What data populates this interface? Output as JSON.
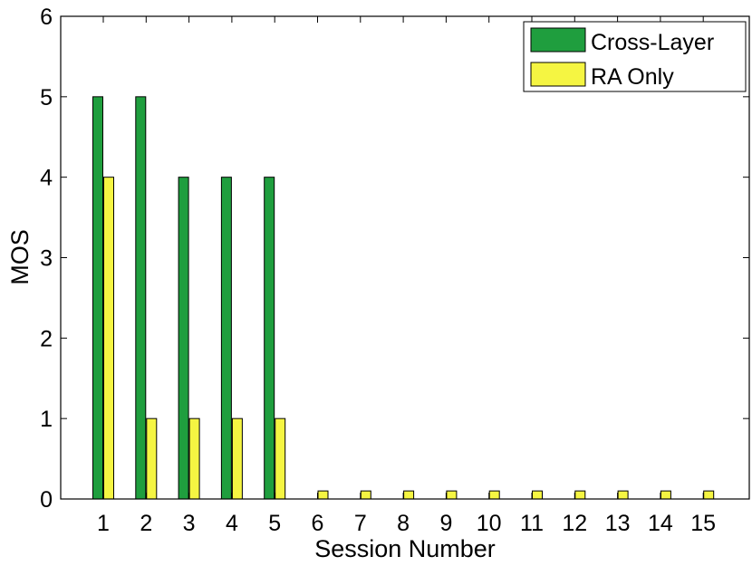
{
  "chart_data": {
    "type": "bar",
    "title": "",
    "xlabel": "Session Number",
    "ylabel": "MOS",
    "categories": [
      "1",
      "2",
      "3",
      "4",
      "5",
      "6",
      "7",
      "8",
      "9",
      "10",
      "11",
      "12",
      "13",
      "14",
      "15"
    ],
    "series": [
      {
        "name": "Cross-Layer",
        "color": "#1f9e3e",
        "values": [
          5,
          5,
          4,
          4,
          4,
          0,
          0,
          0,
          0,
          0,
          0,
          0,
          0,
          0,
          0
        ]
      },
      {
        "name": "RA Only",
        "color": "#f5f542",
        "values": [
          4,
          1,
          1,
          1,
          1,
          0.1,
          0.1,
          0.1,
          0.1,
          0.1,
          0.1,
          0.1,
          0.1,
          0.1,
          0.1
        ]
      }
    ],
    "ylim": [
      0,
      6
    ],
    "yticks": [
      "0",
      "1",
      "2",
      "3",
      "4",
      "5",
      "6"
    ],
    "legend_position": "top-right",
    "grid": false
  }
}
